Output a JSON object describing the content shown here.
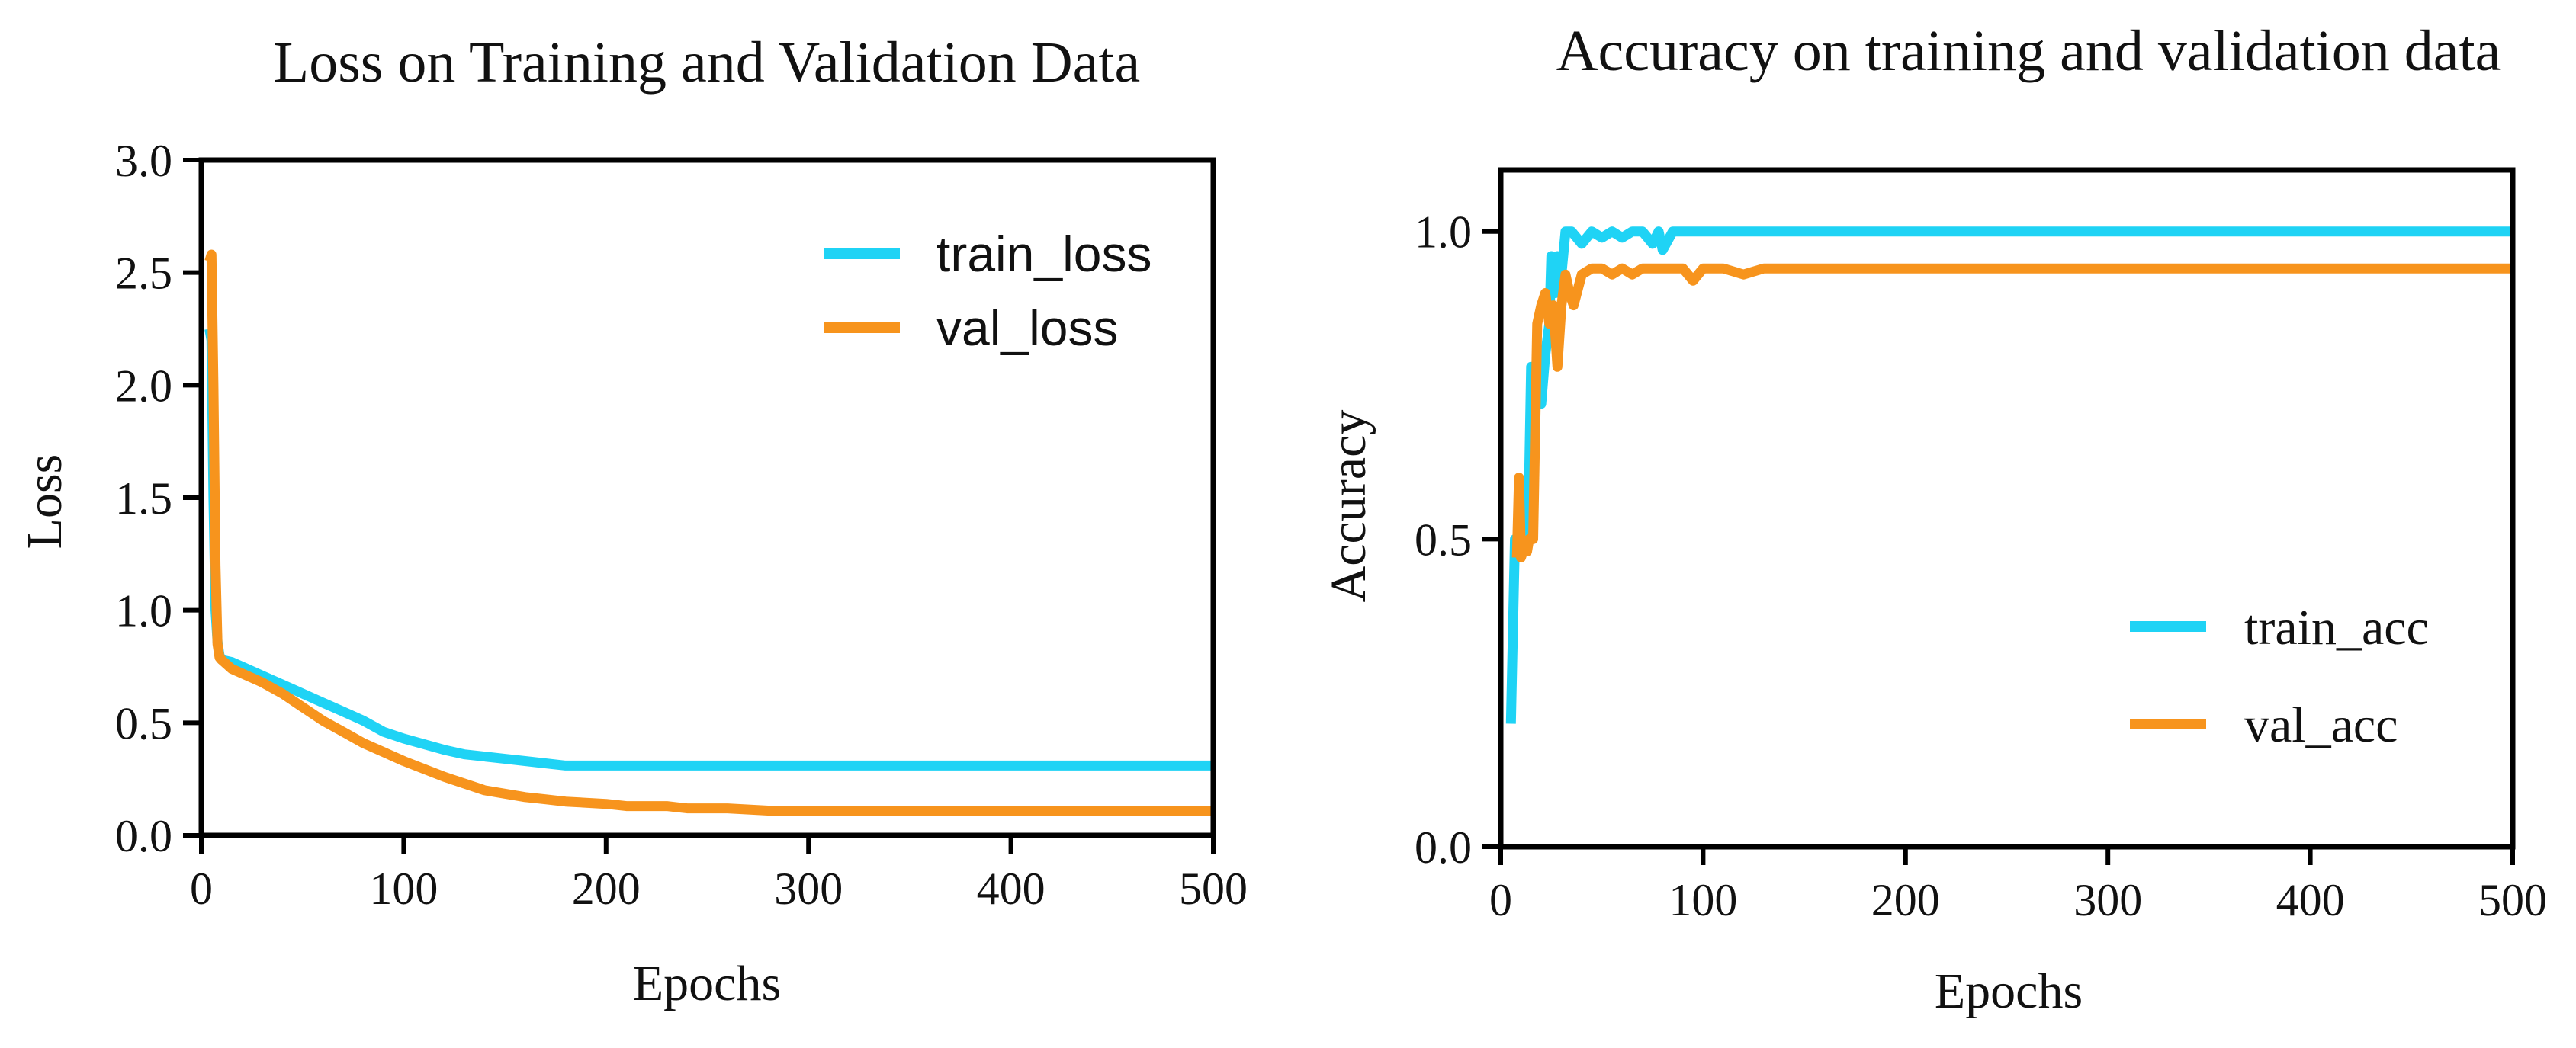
{
  "colors": {
    "train": "#1fd3f5",
    "val": "#f7941d"
  },
  "chart_data": [
    {
      "id": "loss",
      "type": "line",
      "title": "Loss on Training and Validation Data",
      "xlabel": "Epochs",
      "ylabel": "Loss",
      "xlim": [
        0,
        500
      ],
      "ylim": [
        0,
        3
      ],
      "xticks": [
        0,
        100,
        200,
        300,
        400,
        500
      ],
      "xtick_labels": [
        "0",
        "100",
        "200",
        "300",
        "400",
        "500"
      ],
      "yticks": [
        0,
        0.5,
        1,
        1.5,
        2,
        2.5,
        3
      ],
      "ytick_labels": [
        "0.0",
        "0.5",
        "1.0",
        "1.5",
        "2.0",
        "2.5",
        "3.0"
      ],
      "legend_position": "top-right",
      "series": [
        {
          "name": "train_loss",
          "color_key": "train",
          "x": [
            4,
            5,
            6,
            7,
            8,
            9,
            10,
            15,
            20,
            30,
            40,
            50,
            60,
            70,
            80,
            90,
            100,
            120,
            130,
            140,
            150,
            160,
            170,
            180,
            200,
            300,
            400,
            500
          ],
          "y": [
            2.25,
            2.2,
            1.5,
            1.0,
            0.86,
            0.8,
            0.78,
            0.77,
            0.75,
            0.71,
            0.67,
            0.63,
            0.59,
            0.55,
            0.51,
            0.46,
            0.43,
            0.38,
            0.36,
            0.35,
            0.34,
            0.33,
            0.32,
            0.31,
            0.31,
            0.31,
            0.31,
            0.31
          ]
        },
        {
          "name": "val_loss",
          "color_key": "val",
          "x": [
            4,
            5,
            6,
            7,
            8,
            9,
            10,
            15,
            20,
            30,
            40,
            50,
            60,
            70,
            80,
            90,
            100,
            120,
            140,
            160,
            170,
            180,
            200,
            210,
            230,
            240,
            260,
            280,
            300,
            400,
            500
          ],
          "y": [
            2.55,
            2.58,
            2.0,
            1.2,
            0.85,
            0.79,
            0.78,
            0.74,
            0.72,
            0.68,
            0.63,
            0.57,
            0.51,
            0.46,
            0.41,
            0.37,
            0.33,
            0.26,
            0.2,
            0.17,
            0.16,
            0.15,
            0.14,
            0.13,
            0.13,
            0.12,
            0.12,
            0.11,
            0.11,
            0.11,
            0.11
          ]
        }
      ]
    },
    {
      "id": "accuracy",
      "type": "line",
      "title": "Accuracy on training and validation data",
      "xlabel": "Epochs",
      "ylabel": "Accuracy",
      "xlim": [
        0,
        500
      ],
      "ylim": [
        0,
        1.1
      ],
      "xticks": [
        0,
        100,
        200,
        300,
        400,
        500
      ],
      "xtick_labels": [
        "0",
        "100",
        "200",
        "300",
        "400",
        "500"
      ],
      "yticks": [
        0,
        0.5,
        1
      ],
      "ytick_labels": [
        "0.0",
        "0.5",
        "1.0"
      ],
      "legend_position": "bottom-right",
      "series": [
        {
          "name": "train_acc",
          "color_key": "train",
          "x": [
            5,
            7,
            9,
            10,
            12,
            14,
            15,
            18,
            20,
            22,
            24,
            25,
            27,
            28,
            30,
            32,
            35,
            40,
            45,
            50,
            55,
            60,
            65,
            70,
            75,
            78,
            80,
            85,
            90,
            100,
            200,
            300,
            400,
            500
          ],
          "y": [
            0.2,
            0.5,
            0.5,
            0.48,
            0.5,
            0.6,
            0.78,
            0.78,
            0.72,
            0.8,
            0.85,
            0.96,
            0.9,
            0.96,
            0.93,
            1.0,
            1.0,
            0.98,
            1.0,
            0.99,
            1.0,
            0.99,
            1.0,
            1.0,
            0.98,
            1.0,
            0.97,
            1.0,
            1.0,
            1.0,
            1.0,
            1.0,
            1.0,
            1.0
          ]
        },
        {
          "name": "val_acc",
          "color_key": "val",
          "x": [
            8,
            9,
            10,
            11,
            12,
            13,
            14,
            16,
            18,
            20,
            22,
            24,
            26,
            28,
            30,
            32,
            34,
            36,
            40,
            45,
            50,
            55,
            60,
            65,
            70,
            80,
            90,
            95,
            100,
            110,
            120,
            130,
            140,
            200,
            300,
            400,
            500
          ],
          "y": [
            0.47,
            0.6,
            0.47,
            0.48,
            0.48,
            0.48,
            0.5,
            0.5,
            0.85,
            0.88,
            0.9,
            0.85,
            0.88,
            0.78,
            0.88,
            0.93,
            0.9,
            0.88,
            0.93,
            0.94,
            0.94,
            0.93,
            0.94,
            0.93,
            0.94,
            0.94,
            0.94,
            0.92,
            0.94,
            0.94,
            0.93,
            0.94,
            0.94,
            0.94,
            0.94,
            0.94,
            0.94
          ]
        }
      ]
    }
  ]
}
